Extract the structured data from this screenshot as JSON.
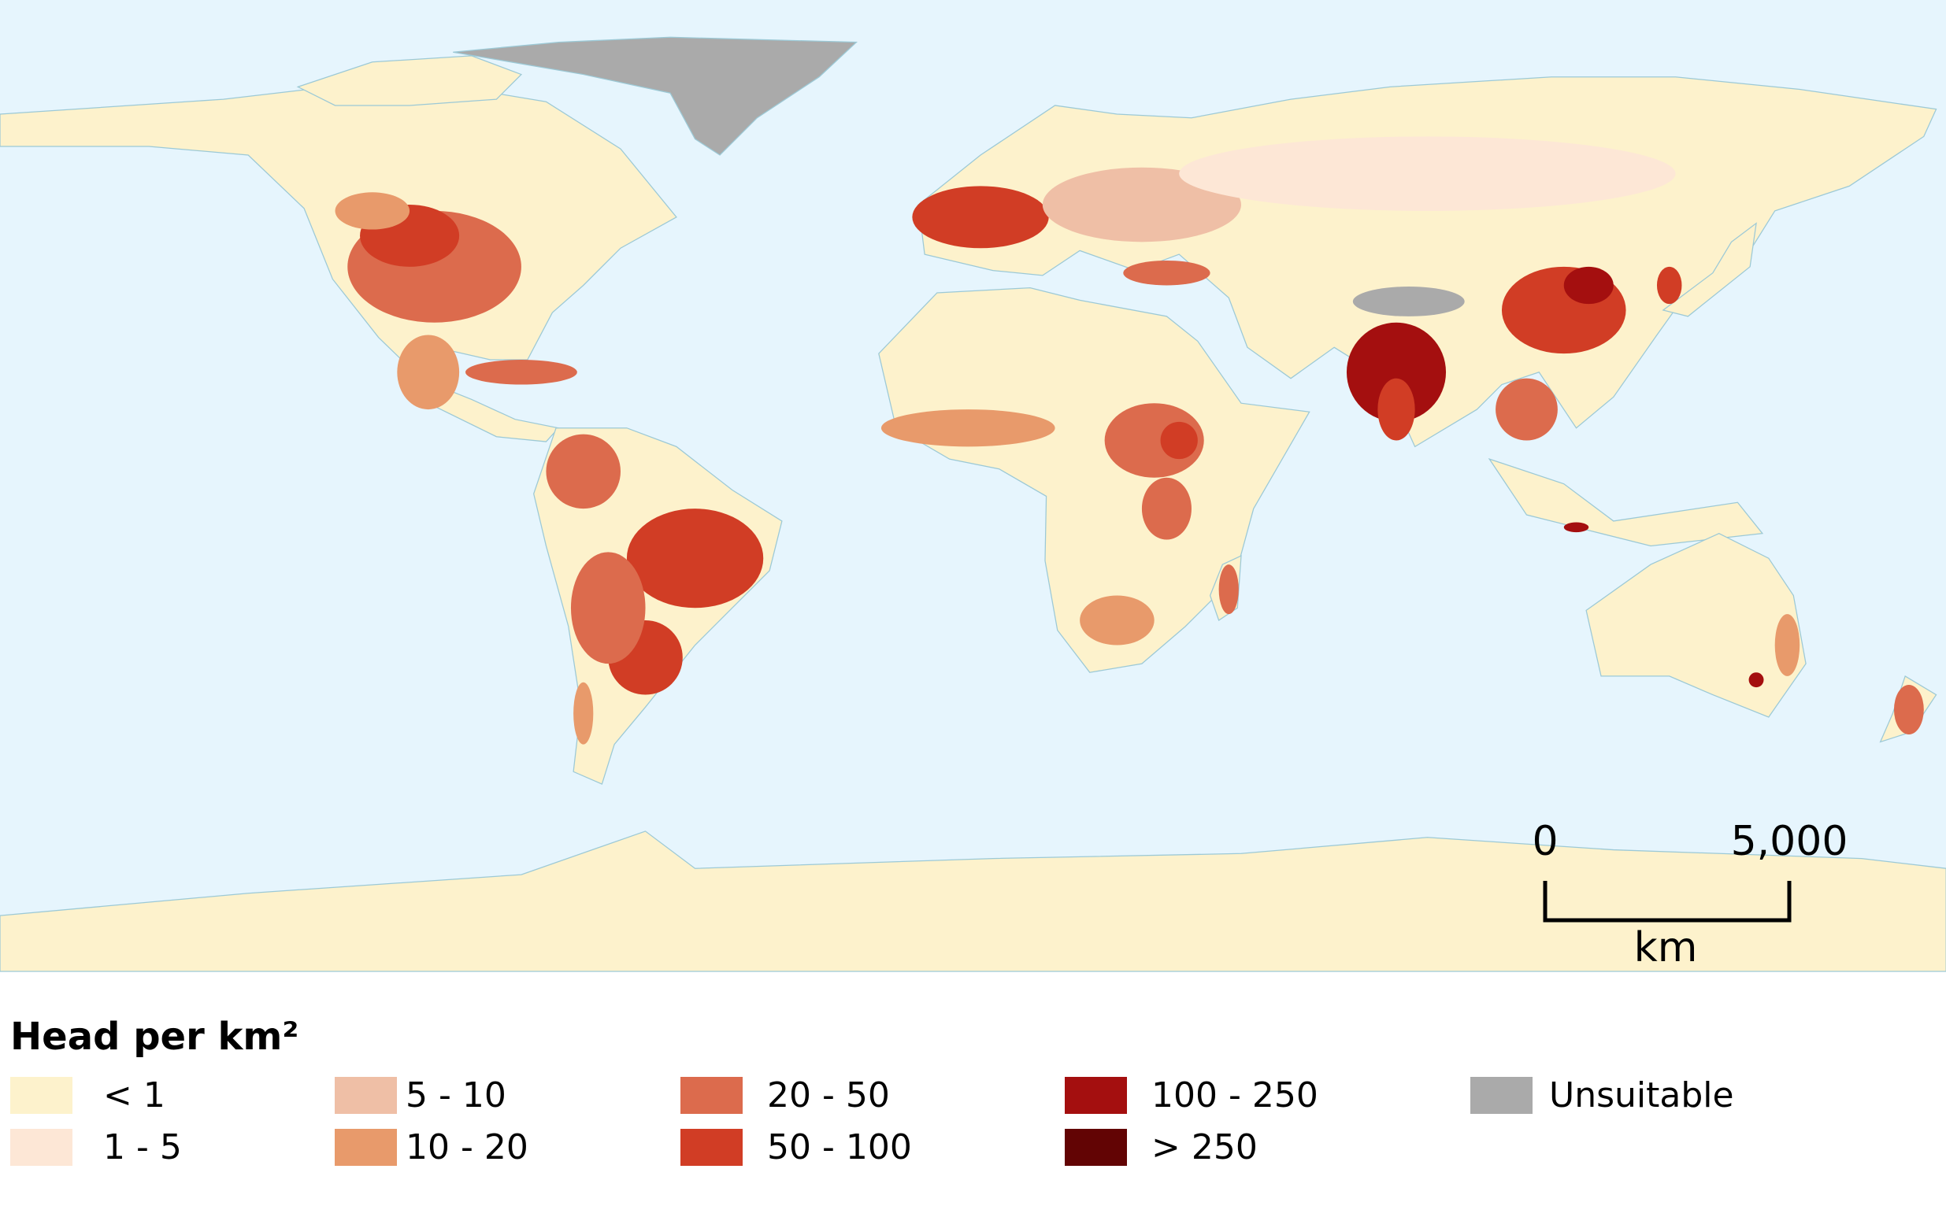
{
  "legend": {
    "title": "Head per km²",
    "items": [
      {
        "label": "< 1",
        "color": "#fdf2cc"
      },
      {
        "label": "1 - 5",
        "color": "#fde7d6"
      },
      {
        "label": "5 - 10",
        "color": "#efbfa6"
      },
      {
        "label": "10 - 20",
        "color": "#e89a6b"
      },
      {
        "label": "20 - 50",
        "color": "#dc6b4d"
      },
      {
        "label": "50 - 100",
        "color": "#d13d25"
      },
      {
        "label": "100 - 250",
        "color": "#a40f0f"
      },
      {
        "label": "> 250",
        "color": "#620404"
      },
      {
        "label": "Unsuitable",
        "color": "#aaaaaa"
      }
    ]
  },
  "scale_bar": {
    "start_label": "0",
    "end_label": "5,000",
    "unit": "km"
  }
}
